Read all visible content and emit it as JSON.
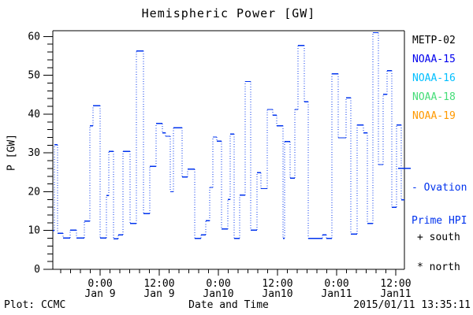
{
  "title": "Hemispheric Power [GW]",
  "footer": {
    "plot_credit": "Plot: CCMC",
    "xlabel": "Date and Time",
    "timestamp": "2015/01/11 13:35:11"
  },
  "legend": {
    "satellites": [
      {
        "label": "METP-02",
        "color": "#000000"
      },
      {
        "label": "NOAA-15",
        "color": "#0000ee"
      },
      {
        "label": "NOAA-16",
        "color": "#00bfff"
      },
      {
        "label": "NOAA-18",
        "color": "#44dd77"
      },
      {
        "label": "NOAA-19",
        "color": "#ff9900"
      }
    ],
    "ovation_line1": "- Ovation",
    "ovation_line2": "Prime HPI",
    "south_marker": "+ south",
    "north_marker": "* north"
  },
  "chart_data": {
    "type": "line",
    "style": "steps",
    "title": "Hemispheric Power [GW]",
    "xlabel": "Date and Time",
    "ylabel": "P [GW]",
    "line_color": "#0033ee",
    "axis_color": "#000000",
    "grid": false,
    "legend_position": "right",
    "ylim": [
      0,
      61.5
    ],
    "y_major_ticks": [
      0,
      10,
      20,
      30,
      40,
      50,
      60
    ],
    "y_minor_step": 2,
    "x_hours_range": [
      -9.6,
      61.76
    ],
    "x_major_ticks": [
      {
        "h": 0,
        "time": "0:00",
        "date": "Jan 9"
      },
      {
        "h": 12,
        "time": "12:00",
        "date": "Jan 9"
      },
      {
        "h": 24,
        "time": "0:00",
        "date": "Jan10"
      },
      {
        "h": 36,
        "time": "12:00",
        "date": "Jan10"
      },
      {
        "h": 48,
        "time": "0:00",
        "date": "Jan11"
      },
      {
        "h": 60,
        "time": "12:00",
        "date": "Jan11"
      }
    ],
    "x_minor_step_hours": 2,
    "hours_reference": "hours since 00:00 Jan 9",
    "ovation_prime_hpi_gw": 26,
    "t_end": 61.76,
    "steps": [
      [
        -9.6,
        10.0
      ],
      [
        -9.28,
        32.1
      ],
      [
        -8.64,
        9.3
      ],
      [
        -7.52,
        8.1
      ],
      [
        -6.08,
        10.1
      ],
      [
        -4.8,
        8.1
      ],
      [
        -3.2,
        12.4
      ],
      [
        -2.08,
        37.0
      ],
      [
        -1.44,
        42.2
      ],
      [
        0.0,
        8.1
      ],
      [
        1.28,
        19.0
      ],
      [
        1.76,
        30.4
      ],
      [
        2.72,
        7.9
      ],
      [
        3.68,
        8.9
      ],
      [
        4.64,
        30.4
      ],
      [
        6.08,
        11.8
      ],
      [
        7.36,
        56.3
      ],
      [
        8.8,
        14.4
      ],
      [
        10.08,
        26.5
      ],
      [
        11.36,
        37.6
      ],
      [
        12.64,
        35.2
      ],
      [
        13.28,
        34.3
      ],
      [
        14.24,
        20.0
      ],
      [
        14.88,
        36.5
      ],
      [
        16.64,
        23.8
      ],
      [
        17.76,
        25.8
      ],
      [
        19.2,
        8.0
      ],
      [
        20.48,
        8.9
      ],
      [
        21.44,
        12.5
      ],
      [
        22.24,
        21.1
      ],
      [
        22.88,
        34.1
      ],
      [
        23.68,
        33.0
      ],
      [
        24.64,
        10.4
      ],
      [
        25.92,
        18.0
      ],
      [
        26.4,
        34.9
      ],
      [
        27.2,
        8.0
      ],
      [
        28.32,
        19.1
      ],
      [
        29.44,
        48.4
      ],
      [
        30.56,
        10.1
      ],
      [
        31.84,
        24.9
      ],
      [
        32.64,
        20.8
      ],
      [
        33.92,
        41.2
      ],
      [
        35.04,
        39.7
      ],
      [
        35.84,
        37.0
      ],
      [
        37.12,
        8.0
      ],
      [
        37.44,
        32.9
      ],
      [
        38.56,
        23.5
      ],
      [
        39.52,
        41.2
      ],
      [
        40.16,
        57.7
      ],
      [
        41.44,
        43.2
      ],
      [
        42.24,
        8.0
      ],
      [
        45.12,
        8.9
      ],
      [
        45.92,
        8.0
      ],
      [
        47.04,
        50.4
      ],
      [
        48.32,
        33.9
      ],
      [
        49.92,
        44.2
      ],
      [
        50.88,
        9.1
      ],
      [
        52.16,
        37.2
      ],
      [
        53.44,
        35.2
      ],
      [
        54.24,
        11.8
      ],
      [
        55.36,
        61.0
      ],
      [
        56.48,
        27.0
      ],
      [
        57.44,
        45.1
      ],
      [
        58.24,
        51.2
      ],
      [
        59.2,
        16.0
      ],
      [
        60.16,
        37.2
      ],
      [
        61.12,
        17.9
      ]
    ]
  }
}
